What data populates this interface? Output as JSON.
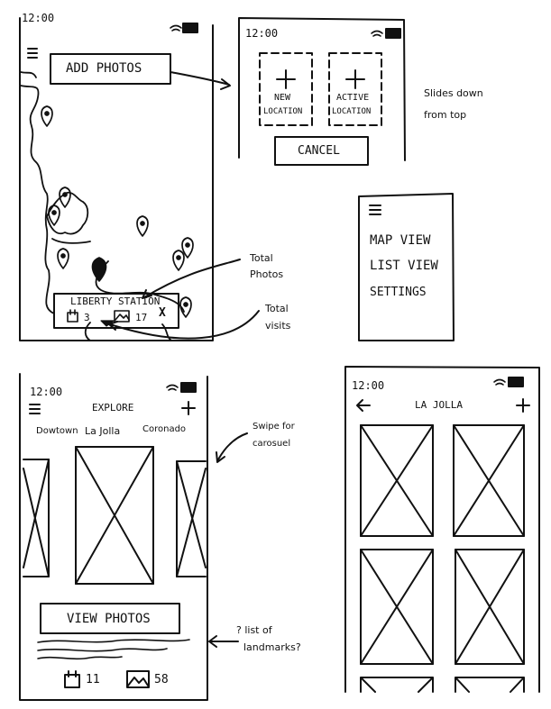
{
  "screen_map": {
    "time": "12:00",
    "add_photos_label": "ADD PHOTOS",
    "callout": {
      "title": "LIBERTY STATION",
      "visits_count": "3",
      "photos_count": "17",
      "close": "X"
    }
  },
  "screen_add": {
    "time": "12:00",
    "new_location_top": "NEW",
    "new_location_bottom": "LOCATION",
    "active_location_top": "ACTIVE",
    "active_location_bottom": "LOCATION",
    "cancel_label": "CANCEL"
  },
  "menu": {
    "items": [
      "MAP VIEW",
      "LIST VIEW",
      "SETTINGS"
    ]
  },
  "screen_explore": {
    "time": "12:00",
    "title": "EXPLORE",
    "tabs": [
      "Dowtown",
      "La Jolla",
      "Coronado"
    ],
    "view_photos_label": "VIEW PHOTOS",
    "visits_count": "11",
    "photos_count": "58"
  },
  "screen_list": {
    "time": "12:00",
    "title": "LA JOLLA"
  },
  "annotations": {
    "slides_line1": "Slides down",
    "slides_line2": "from top",
    "total_photos_line1": "Total",
    "total_photos_line2": "Photos",
    "total_visits_line1": "Total",
    "total_visits_line2": "visits",
    "swipe_line1": "Swipe for",
    "swipe_line2": "carosuel",
    "landmarks_line1": "? list of",
    "landmarks_line2": "landmarks?"
  }
}
